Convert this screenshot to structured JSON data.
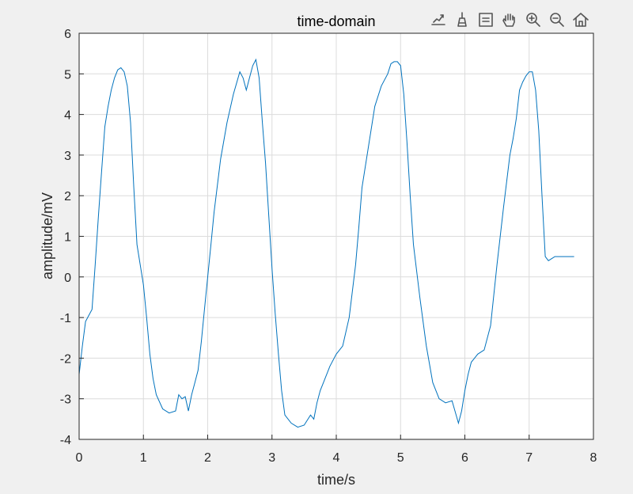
{
  "toolbar": {
    "icons": [
      "export-icon",
      "brush-icon",
      "datatip-icon",
      "pan-icon",
      "zoom-in-icon",
      "zoom-out-icon",
      "home-icon"
    ]
  },
  "chart_data": {
    "type": "line",
    "title": "time-domain",
    "xlabel": "time/s",
    "ylabel": "amplitude/mV",
    "xlim": [
      0,
      8
    ],
    "ylim": [
      -4,
      6
    ],
    "grid": true,
    "xticks": [
      0,
      1,
      2,
      3,
      4,
      5,
      6,
      7,
      8
    ],
    "yticks": [
      -4,
      -3,
      -2,
      -1,
      0,
      1,
      2,
      3,
      4,
      5,
      6
    ],
    "line_color": "#0072BD",
    "series": [
      {
        "x": [
          0,
          0.05,
          0.1,
          0.15,
          0.2,
          0.25,
          0.3,
          0.35,
          0.4,
          0.45,
          0.5,
          0.55,
          0.6,
          0.65,
          0.7,
          0.75,
          0.8,
          0.85,
          0.9,
          0.95,
          1.0,
          1.05,
          1.1,
          1.15,
          1.2,
          1.3,
          1.4,
          1.5,
          1.55,
          1.6,
          1.65,
          1.7,
          1.75,
          1.8,
          1.85,
          1.9,
          1.95,
          2.0,
          2.05,
          2.1,
          2.2,
          2.3,
          2.4,
          2.5,
          2.55,
          2.6,
          2.65,
          2.7,
          2.75,
          2.8,
          2.85,
          2.9,
          2.95,
          3.0,
          3.05,
          3.1,
          3.15,
          3.2,
          3.3,
          3.4,
          3.5,
          3.6,
          3.65,
          3.7,
          3.75,
          3.8,
          3.9,
          4.0,
          4.1,
          4.2,
          4.3,
          4.35,
          4.4,
          4.5,
          4.6,
          4.7,
          4.8,
          4.85,
          4.9,
          4.95,
          5.0,
          5.05,
          5.1,
          5.15,
          5.2,
          5.3,
          5.4,
          5.5,
          5.6,
          5.7,
          5.8,
          5.9,
          5.95,
          6.0,
          6.05,
          6.1,
          6.15,
          6.2,
          6.3,
          6.4,
          6.5,
          6.6,
          6.7,
          6.75,
          6.8,
          6.85,
          6.9,
          6.95,
          7.0,
          7.05,
          7.1,
          7.15,
          7.2,
          7.25,
          7.3,
          7.35,
          7.4,
          7.45,
          7.5,
          7.55,
          7.6,
          7.65,
          7.7
        ],
        "y": [
          -2.4,
          -1.7,
          -1.1,
          -0.95,
          -0.8,
          0.3,
          1.5,
          2.6,
          3.7,
          4.2,
          4.6,
          4.9,
          5.1,
          5.15,
          5.05,
          4.7,
          3.8,
          2.2,
          0.8,
          0.3,
          -0.2,
          -1.0,
          -1.9,
          -2.5,
          -2.9,
          -3.25,
          -3.35,
          -3.3,
          -2.9,
          -3.0,
          -2.95,
          -3.3,
          -2.9,
          -2.6,
          -2.3,
          -1.6,
          -0.8,
          0.0,
          0.8,
          1.6,
          2.9,
          3.8,
          4.5,
          5.05,
          4.9,
          4.6,
          4.9,
          5.2,
          5.35,
          4.9,
          3.8,
          2.8,
          1.5,
          0.2,
          -0.9,
          -1.9,
          -2.8,
          -3.4,
          -3.6,
          -3.7,
          -3.65,
          -3.4,
          -3.5,
          -3.1,
          -2.8,
          -2.6,
          -2.2,
          -1.9,
          -1.7,
          -1.0,
          0.3,
          1.2,
          2.2,
          3.2,
          4.2,
          4.7,
          5.0,
          5.25,
          5.3,
          5.3,
          5.2,
          4.5,
          3.3,
          2.0,
          0.8,
          -0.5,
          -1.7,
          -2.6,
          -3.0,
          -3.1,
          -3.05,
          -3.6,
          -3.3,
          -2.8,
          -2.4,
          -2.1,
          -2.0,
          -1.9,
          -1.8,
          -1.2,
          0.3,
          1.7,
          3.0,
          3.4,
          3.9,
          4.6,
          4.8,
          4.95,
          5.05,
          5.05,
          4.6,
          3.6,
          2.0,
          0.5,
          0.4,
          0.45,
          0.5,
          0.5,
          0.5,
          0.5,
          0.5,
          0.5,
          0.5
        ]
      }
    ]
  }
}
